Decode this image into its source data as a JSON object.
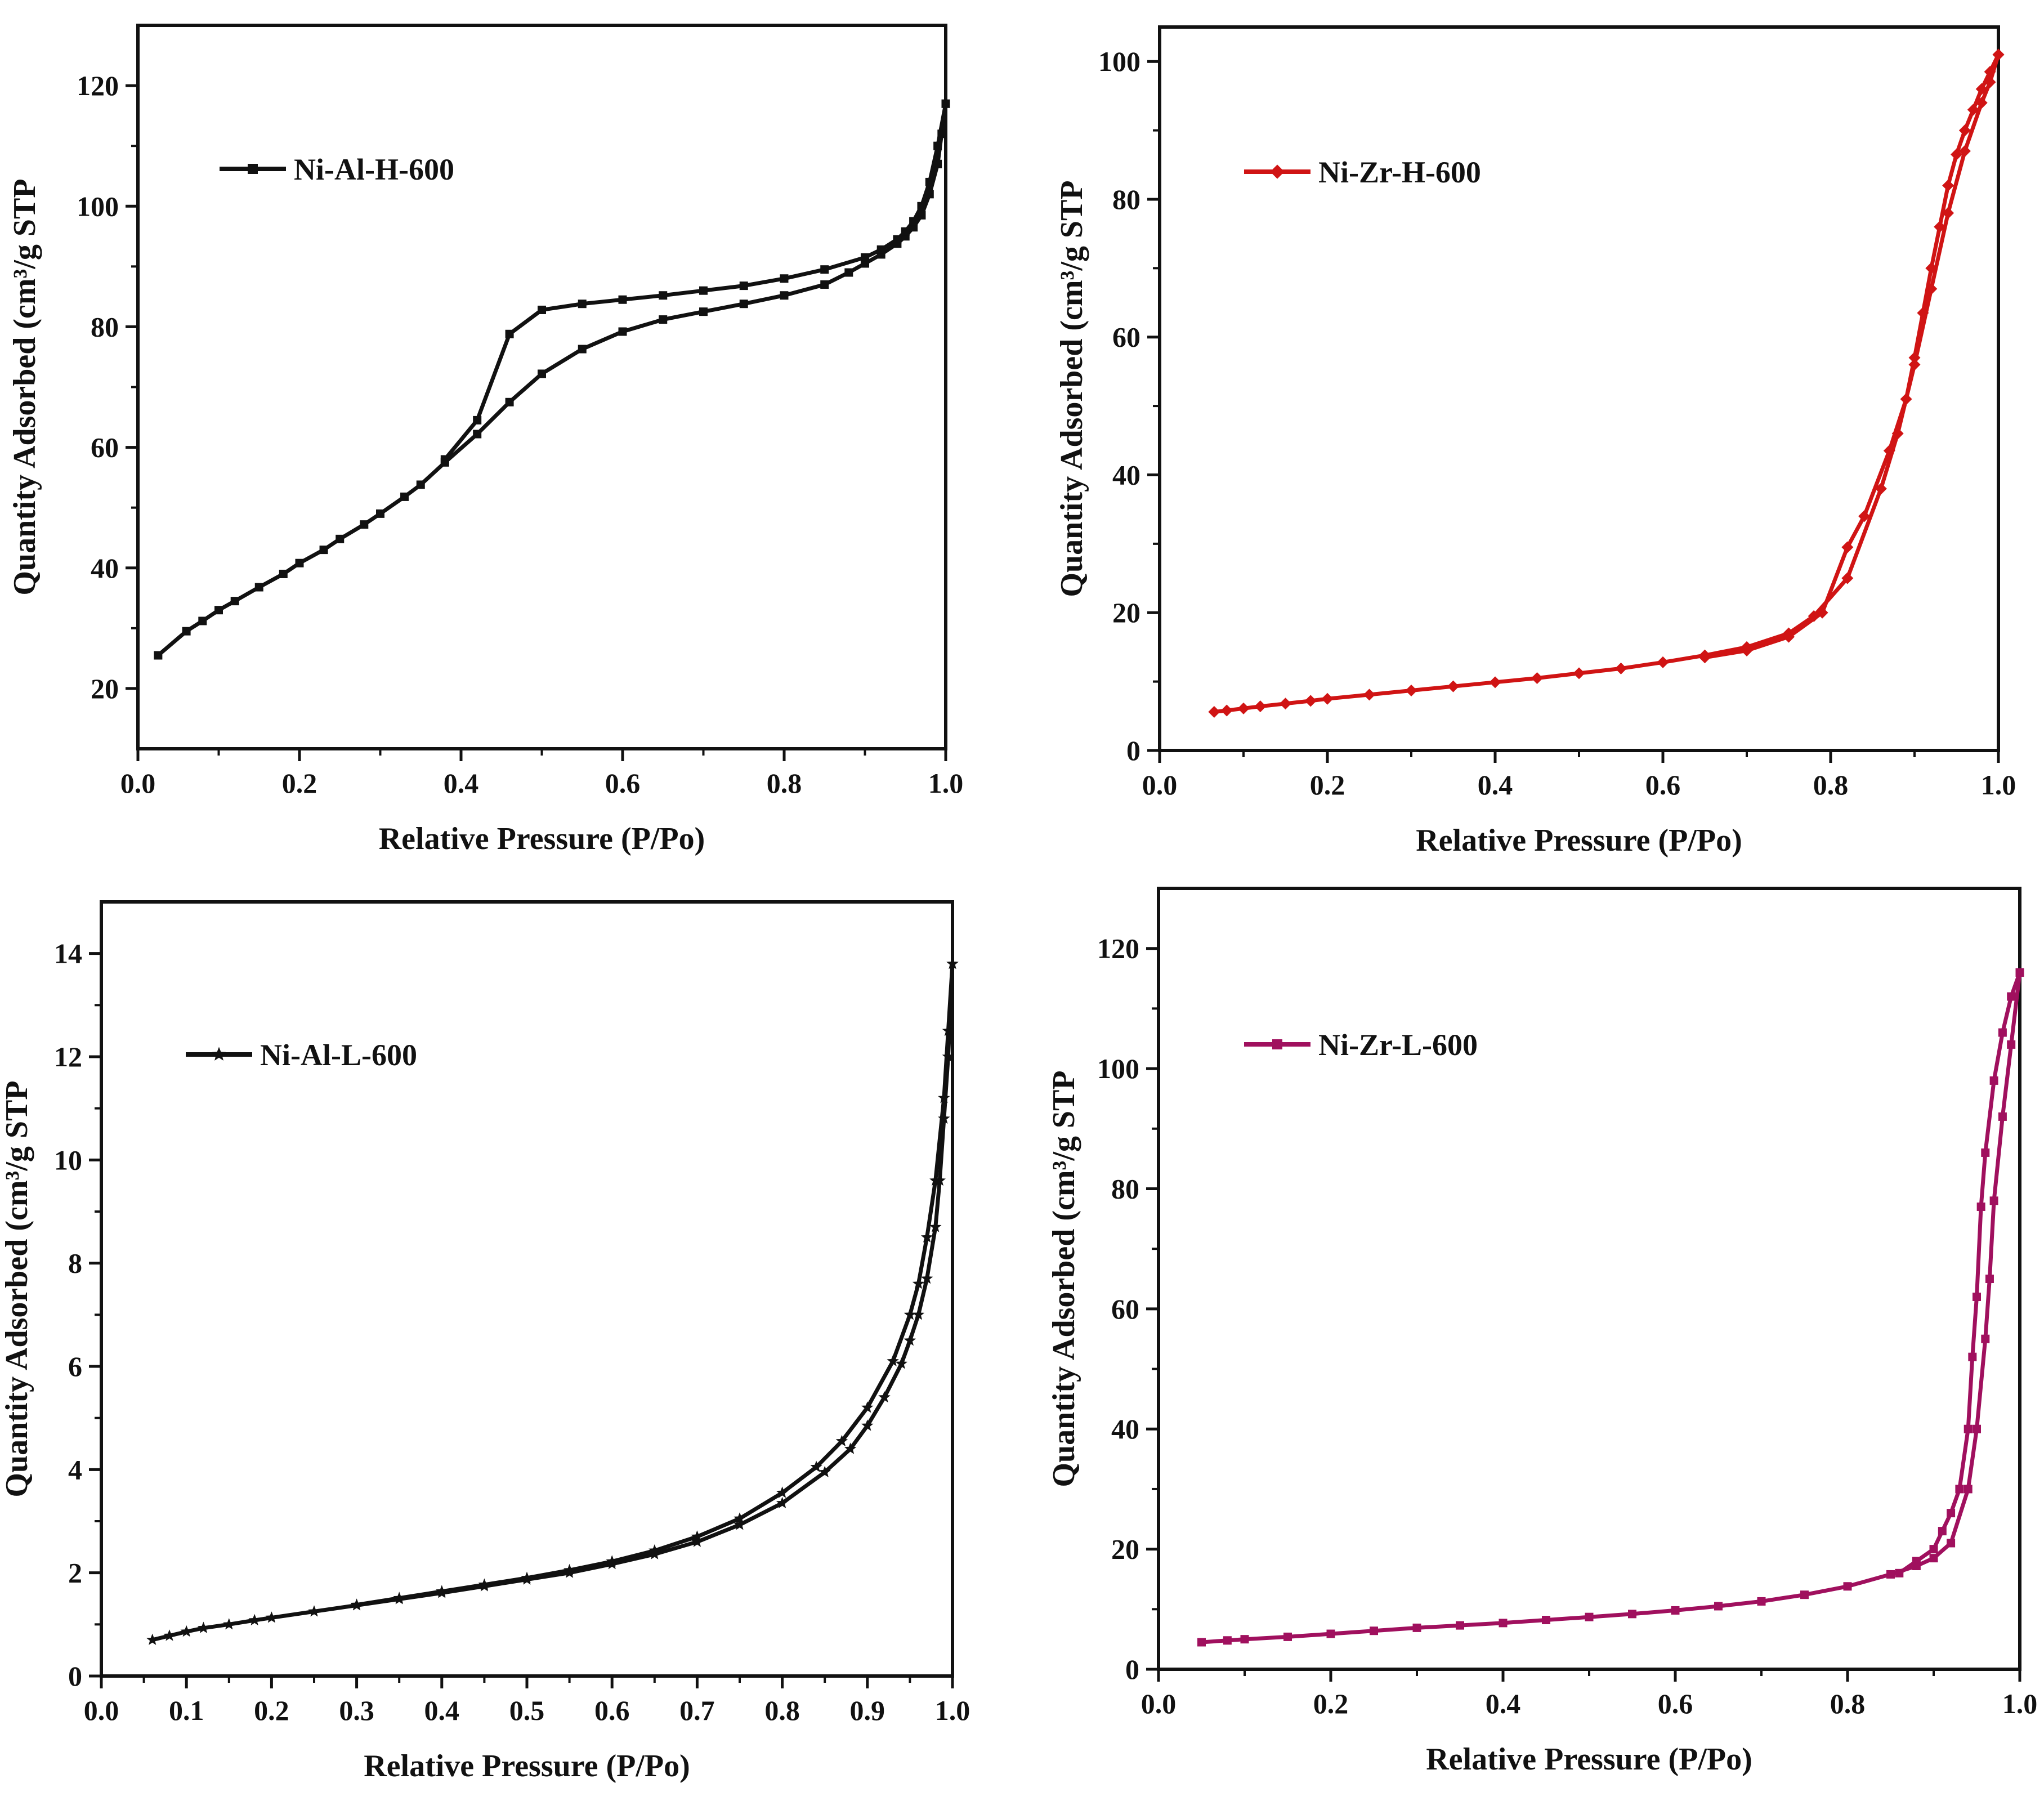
{
  "chart_data": [
    {
      "type": "line",
      "panel": "top-left",
      "title": "",
      "xlabel": "Relative Pressure (P/Po)",
      "ylabel": "Quantity Adsorbed (cm³/g STP",
      "xlim": [
        0.0,
        1.0
      ],
      "ylim": [
        10,
        130
      ],
      "xticks": [
        0.0,
        0.2,
        0.4,
        0.6,
        0.8,
        1.0
      ],
      "xtick_labels": [
        "0.0",
        "0.2",
        "0.4",
        "0.6",
        "0.8",
        "1.0"
      ],
      "yticks": [
        20,
        40,
        60,
        80,
        100,
        120
      ],
      "ytick_labels": [
        "20",
        "40",
        "60",
        "80",
        "100",
        "120"
      ],
      "legend_position": "top-left",
      "color": "#111111",
      "marker": "square",
      "series": [
        {
          "name": "Ni-Al-H-600",
          "branch": "adsorption",
          "x": [
            0.025,
            0.06,
            0.08,
            0.1,
            0.12,
            0.15,
            0.18,
            0.2,
            0.23,
            0.25,
            0.28,
            0.3,
            0.33,
            0.35,
            0.38,
            0.42,
            0.46,
            0.5,
            0.55,
            0.6,
            0.65,
            0.7,
            0.75,
            0.8,
            0.85,
            0.88,
            0.9,
            0.92,
            0.94,
            0.95,
            0.96,
            0.97,
            0.98,
            0.99,
            0.995,
            1.0
          ],
          "y": [
            25.5,
            29.5,
            31.2,
            33,
            34.5,
            36.8,
            39,
            40.8,
            43,
            44.8,
            47.2,
            49,
            51.8,
            53.8,
            57.5,
            62.2,
            67.5,
            72.2,
            76.3,
            79.2,
            81.2,
            82.5,
            83.8,
            85.2,
            87,
            89,
            90.5,
            92,
            93.8,
            95,
            96.5,
            98.5,
            102,
            107,
            112,
            117
          ]
        },
        {
          "name": "Ni-Al-H-600",
          "branch": "desorption",
          "x": [
            1.0,
            0.99,
            0.98,
            0.97,
            0.96,
            0.95,
            0.94,
            0.92,
            0.9,
            0.85,
            0.8,
            0.75,
            0.7,
            0.65,
            0.6,
            0.55,
            0.5,
            0.46,
            0.42,
            0.38
          ],
          "y": [
            117,
            110,
            104,
            100,
            97.5,
            95.8,
            94.5,
            92.8,
            91.5,
            89.5,
            88,
            86.8,
            86,
            85.2,
            84.5,
            83.8,
            82.8,
            78.8,
            64.5,
            58
          ]
        }
      ]
    },
    {
      "type": "line",
      "panel": "top-right",
      "title": "",
      "xlabel": "Relative Pressure (P/Po)",
      "ylabel": "Quantity Adsorbed (cm³/g STP",
      "xlim": [
        0.0,
        1.0
      ],
      "ylim": [
        0,
        105
      ],
      "xticks": [
        0.0,
        0.2,
        0.4,
        0.6,
        0.8,
        1.0
      ],
      "xtick_labels": [
        "0.0",
        "0.2",
        "0.4",
        "0.6",
        "0.8",
        "1.0"
      ],
      "yticks": [
        0,
        20,
        40,
        60,
        80,
        100
      ],
      "ytick_labels": [
        "0",
        "20",
        "40",
        "60",
        "80",
        "100"
      ],
      "legend_position": "top-left",
      "color": "#d01414",
      "marker": "diamond",
      "series": [
        {
          "name": "Ni-Zr-H-600",
          "branch": "adsorption",
          "x": [
            0.065,
            0.08,
            0.1,
            0.12,
            0.15,
            0.18,
            0.2,
            0.25,
            0.3,
            0.35,
            0.4,
            0.45,
            0.5,
            0.55,
            0.6,
            0.65,
            0.7,
            0.75,
            0.78,
            0.82,
            0.86,
            0.88,
            0.9,
            0.92,
            0.94,
            0.96,
            0.98,
            0.99,
            1.0
          ],
          "y": [
            5.6,
            5.8,
            6.1,
            6.4,
            6.8,
            7.2,
            7.5,
            8.1,
            8.7,
            9.3,
            9.9,
            10.5,
            11.2,
            11.9,
            12.8,
            13.8,
            15,
            17,
            19.5,
            25,
            38,
            46,
            56,
            67,
            78,
            87,
            94,
            97,
            101
          ]
        },
        {
          "name": "Ni-Zr-H-600",
          "branch": "desorption",
          "x": [
            1.0,
            0.99,
            0.98,
            0.97,
            0.96,
            0.95,
            0.94,
            0.93,
            0.92,
            0.91,
            0.9,
            0.89,
            0.87,
            0.84,
            0.82,
            0.79,
            0.75,
            0.7,
            0.65
          ],
          "y": [
            101,
            98.5,
            96,
            93,
            90,
            86.5,
            82,
            76,
            70,
            63.5,
            57,
            51,
            43.5,
            34,
            29.5,
            20,
            16.5,
            14.5,
            13.5
          ]
        }
      ]
    },
    {
      "type": "line",
      "panel": "bottom-left",
      "title": "",
      "xlabel": "Relative Pressure (P/Po)",
      "ylabel": "Quantity Adsorbed (cm³/g STP",
      "xlim": [
        0.0,
        1.0
      ],
      "ylim": [
        0,
        15
      ],
      "xticks": [
        0.0,
        0.1,
        0.2,
        0.3,
        0.4,
        0.5,
        0.6,
        0.7,
        0.8,
        0.9,
        1.0
      ],
      "xtick_labels": [
        "0.0",
        "0.1",
        "0.2",
        "0.3",
        "0.4",
        "0.5",
        "0.6",
        "0.7",
        "0.8",
        "0.9",
        "1.0"
      ],
      "yticks": [
        0,
        2,
        4,
        6,
        8,
        10,
        12,
        14
      ],
      "ytick_labels": [
        "0",
        "2",
        "4",
        "6",
        "8",
        "10",
        "12",
        "14"
      ],
      "legend_position": "top-left",
      "color": "#111111",
      "marker": "star",
      "series": [
        {
          "name": "Ni-Al-L-600",
          "branch": "adsorption",
          "x": [
            0.06,
            0.08,
            0.1,
            0.12,
            0.15,
            0.18,
            0.2,
            0.25,
            0.3,
            0.35,
            0.4,
            0.45,
            0.5,
            0.55,
            0.6,
            0.65,
            0.7,
            0.75,
            0.8,
            0.85,
            0.88,
            0.9,
            0.92,
            0.94,
            0.95,
            0.96,
            0.97,
            0.98,
            0.985,
            0.99,
            0.995,
            1.0
          ],
          "y": [
            0.7,
            0.78,
            0.86,
            0.93,
            1.0,
            1.08,
            1.13,
            1.25,
            1.37,
            1.49,
            1.61,
            1.74,
            1.87,
            2.0,
            2.17,
            2.36,
            2.6,
            2.93,
            3.35,
            3.95,
            4.4,
            4.85,
            5.4,
            6.05,
            6.5,
            7.0,
            7.7,
            8.7,
            9.6,
            10.8,
            12.0,
            13.8
          ]
        },
        {
          "name": "Ni-Al-L-600",
          "branch": "desorption",
          "x": [
            1.0,
            0.995,
            0.99,
            0.98,
            0.97,
            0.96,
            0.95,
            0.93,
            0.9,
            0.87,
            0.84,
            0.8,
            0.75,
            0.7,
            0.65,
            0.6,
            0.55,
            0.5,
            0.45,
            0.4,
            0.35,
            0.3
          ],
          "y": [
            13.8,
            12.5,
            11.2,
            9.6,
            8.5,
            7.6,
            7.0,
            6.1,
            5.2,
            4.55,
            4.05,
            3.55,
            3.05,
            2.7,
            2.43,
            2.22,
            2.05,
            1.9,
            1.77,
            1.64,
            1.51,
            1.38
          ]
        }
      ]
    },
    {
      "type": "line",
      "panel": "bottom-right",
      "title": "",
      "xlabel": "Relative Pressure (P/Po)",
      "ylabel": "Quantity Adsorbed (cm³/g STP",
      "xlim": [
        0.0,
        1.0
      ],
      "ylim": [
        0,
        130
      ],
      "xticks": [
        0.0,
        0.2,
        0.4,
        0.6,
        0.8,
        1.0
      ],
      "xtick_labels": [
        "0.0",
        "0.2",
        "0.4",
        "0.6",
        "0.8",
        "1.0"
      ],
      "yticks": [
        0,
        20,
        40,
        60,
        80,
        100,
        120
      ],
      "ytick_labels": [
        "0",
        "20",
        "40",
        "60",
        "80",
        "100",
        "120"
      ],
      "legend_position": "top-left",
      "color": "#a0105e",
      "marker": "square",
      "series": [
        {
          "name": "Ni-Zr-L-600",
          "branch": "adsorption",
          "x": [
            0.05,
            0.08,
            0.1,
            0.15,
            0.2,
            0.25,
            0.3,
            0.35,
            0.4,
            0.45,
            0.5,
            0.55,
            0.6,
            0.65,
            0.7,
            0.75,
            0.8,
            0.85,
            0.88,
            0.9,
            0.92,
            0.94,
            0.95,
            0.96,
            0.965,
            0.97,
            0.98,
            0.99,
            1.0
          ],
          "y": [
            4.5,
            4.8,
            5.0,
            5.4,
            5.9,
            6.4,
            6.9,
            7.3,
            7.7,
            8.2,
            8.7,
            9.2,
            9.8,
            10.5,
            11.3,
            12.4,
            13.8,
            15.8,
            17.2,
            18.5,
            21,
            30,
            40,
            55,
            65,
            78,
            92,
            104,
            116
          ]
        },
        {
          "name": "Ni-Zr-L-600",
          "branch": "desorption",
          "x": [
            1.0,
            0.99,
            0.98,
            0.97,
            0.96,
            0.955,
            0.95,
            0.945,
            0.94,
            0.93,
            0.92,
            0.91,
            0.9,
            0.88,
            0.86
          ],
          "y": [
            116,
            112,
            106,
            98,
            86,
            77,
            62,
            52,
            40,
            30,
            26,
            23,
            20,
            18,
            16
          ]
        }
      ]
    }
  ]
}
